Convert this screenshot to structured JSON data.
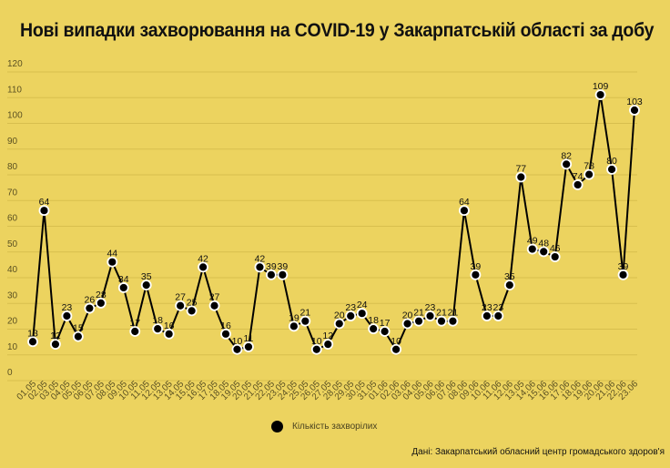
{
  "title": "Нові випадки захворювання на COVID-19 у Закарпатській області за добу",
  "legend": {
    "label": "Кількість захворілих",
    "marker_color": "#000000"
  },
  "source": "Дані: Закарпатський обласний центр громадського здоров'я",
  "colors": {
    "background": "#ECD35F",
    "line": "#000000",
    "grid": "#D8BF4E",
    "marker_stroke": "#FFFFFF"
  },
  "chart_data": {
    "type": "line",
    "title": "Нові випадки захворювання на COVID-19 у Закарпатській області за добу",
    "xlabel": "",
    "ylabel": "",
    "ylim": [
      0,
      120
    ],
    "yticks": [
      0,
      10,
      20,
      30,
      40,
      50,
      60,
      70,
      80,
      90,
      100,
      110,
      120
    ],
    "grid": true,
    "legend_position": "bottom",
    "categories": [
      "01.05",
      "02.05",
      "03.05",
      "04.05",
      "05.05",
      "06.05",
      "07.05",
      "08.05",
      "09.05",
      "10.05",
      "11.05",
      "12.05",
      "13.05",
      "14.05",
      "15.05",
      "16.05",
      "17.05",
      "18.05",
      "19.05",
      "20.05",
      "21.05",
      "22.05",
      "23.05",
      "24.05",
      "25.05",
      "26.05",
      "27.05",
      "28.05",
      "29.05",
      "30.05",
      "31.05",
      "01.06",
      "02.06",
      "03.06",
      "04.06",
      "05.06",
      "06.06",
      "07.06",
      "08.06",
      "09.06",
      "10.06",
      "11.06",
      "12.06",
      "13.05",
      "14.06",
      "15.06",
      "16.06",
      "17.06",
      "18.06",
      "19.06",
      "20.06",
      "21.06",
      "22.06",
      "23.06"
    ],
    "series": [
      {
        "name": "Кількість захворілих",
        "values": [
          13,
          64,
          12,
          23,
          15,
          26,
          28,
          44,
          34,
          17,
          35,
          18,
          16,
          27,
          25,
          42,
          27,
          16,
          10,
          11,
          42,
          39,
          39,
          19,
          21,
          10,
          12,
          20,
          23,
          24,
          18,
          17,
          10,
          20,
          21,
          23,
          21,
          21,
          64,
          39,
          23,
          23,
          35,
          77,
          49,
          48,
          46,
          82,
          74,
          78,
          109,
          80,
          39,
          103
        ]
      }
    ]
  }
}
